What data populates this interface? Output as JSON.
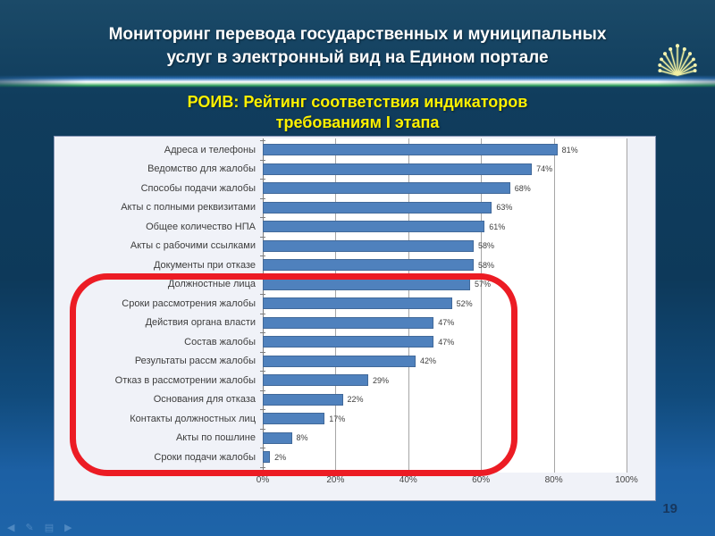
{
  "header": {
    "title_line1": "Мониторинг перевода государственных и муниципальных",
    "title_line2": "услуг в электронный вид на Едином портале",
    "subtitle_line1": "РОИВ: Рейтинг соответствия индикаторов",
    "subtitle_line2": "требованиям I этапа",
    "emblem_icon": "fan-rays-icon"
  },
  "chart_data": {
    "type": "bar",
    "orientation": "horizontal",
    "title": "РОИВ: Рейтинг соответствия индикаторов требованиям I этапа",
    "categories": [
      "Адреса и телефоны",
      "Ведомство для жалобы",
      "Способы подачи жалобы",
      "Акты с полными реквизитами",
      "Общее количество НПА",
      "Акты с рабочими ссылками",
      "Документы при отказе",
      "Должностные лица",
      "Сроки рассмотрения жалобы",
      "Действия органа власти",
      "Состав жалобы",
      "Результаты рассм жалобы",
      "Отказ в рассмотрении жалобы",
      "Основания для отказа",
      "Контакты должностных лиц",
      "Акты по пошлине",
      "Сроки подачи жалобы"
    ],
    "values": [
      81,
      74,
      68,
      63,
      61,
      58,
      58,
      57,
      52,
      47,
      47,
      42,
      29,
      22,
      17,
      8,
      2
    ],
    "value_suffix": "%",
    "xlim": [
      0,
      100
    ],
    "x_ticks": [
      0,
      20,
      40,
      60,
      80,
      100
    ],
    "x_tick_suffix": "%",
    "bar_color": "#4f81bd",
    "grid": true,
    "legend": false,
    "highlight": {
      "shape": "red-rounded-rectangle",
      "color": "#ec1c24",
      "from_category": "Должностные лица",
      "to_category": "Сроки подачи жалобы"
    }
  },
  "footer": {
    "page_number": "19",
    "nav_icons": [
      {
        "name": "back-arrow-icon",
        "glyph": "◀"
      },
      {
        "name": "pen-icon",
        "glyph": "✎"
      },
      {
        "name": "menu-icon",
        "glyph": "▤"
      },
      {
        "name": "forward-arrow-icon",
        "glyph": "▶"
      }
    ]
  }
}
